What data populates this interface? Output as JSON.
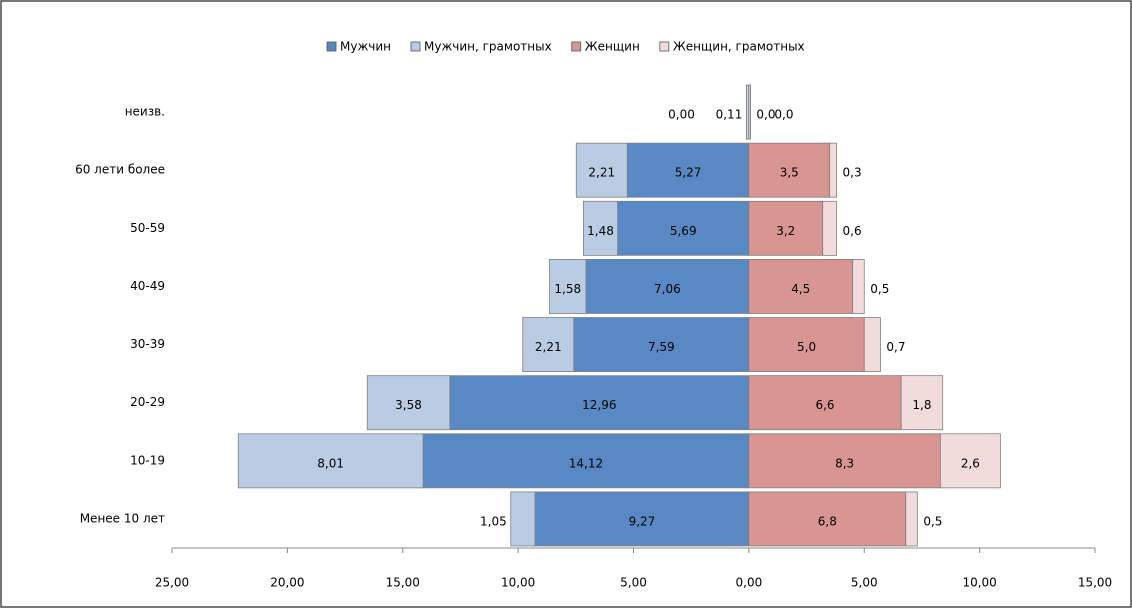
{
  "chart_data": {
    "type": "bar",
    "orientation": "horizontal",
    "stacked": true,
    "legend": "top",
    "categories": [
      "неизв.",
      "60 лети более",
      "50-59",
      "40-49",
      "30-39",
      "20-29",
      "10-19",
      "Менее 10 лет"
    ],
    "series": [
      {
        "name": "Мужчин",
        "color": "#5889c4",
        "values": [
          0,
          -5.27,
          -5.69,
          -7.06,
          -7.59,
          -12.96,
          -14.12,
          -9.27
        ],
        "value_labels": [
          "0,00",
          "5,27",
          "5,69",
          "7,06",
          "7,59",
          "12,96",
          "14,12",
          "9,27"
        ]
      },
      {
        "name": "Мужчин, грамотных",
        "color": "#b9cce4",
        "values": [
          -0.11,
          -2.21,
          -1.48,
          -1.58,
          -2.21,
          -3.58,
          -8.01,
          -1.05
        ],
        "value_labels": [
          "0,11",
          "2,21",
          "1,48",
          "1,58",
          "2,21",
          "3,58",
          "8,01",
          "1,05"
        ]
      },
      {
        "name": "Женщин",
        "color": "#d99592",
        "values": [
          0,
          3.5,
          3.2,
          4.5,
          5.0,
          6.6,
          8.3,
          6.8
        ],
        "value_labels": [
          "0,0",
          "3,5",
          "3,2",
          "4,5",
          "5,0",
          "6,6",
          "8,3",
          "6,8"
        ]
      },
      {
        "name": "Женщин, грамотных",
        "color": "#f2dcdb",
        "values": [
          0,
          0.3,
          0.6,
          0.5,
          0.7,
          1.8,
          2.6,
          0.5
        ],
        "value_labels": [
          "0,0",
          "0,3",
          "0,6",
          "0,5",
          "0,7",
          "1,8",
          "2,6",
          "0,5"
        ]
      }
    ],
    "xlim": [
      -25,
      15
    ],
    "xticks": [
      {
        "value": -25,
        "label": "25,00"
      },
      {
        "value": -20,
        "label": "20,00"
      },
      {
        "value": -15,
        "label": "15,00"
      },
      {
        "value": -10,
        "label": "10,00"
      },
      {
        "value": -5,
        "label": "5,00"
      },
      {
        "value": 0,
        "label": "0,00"
      },
      {
        "value": 5,
        "label": "5,00"
      },
      {
        "value": 10,
        "label": "10,00"
      },
      {
        "value": 15,
        "label": "15,00"
      }
    ]
  }
}
